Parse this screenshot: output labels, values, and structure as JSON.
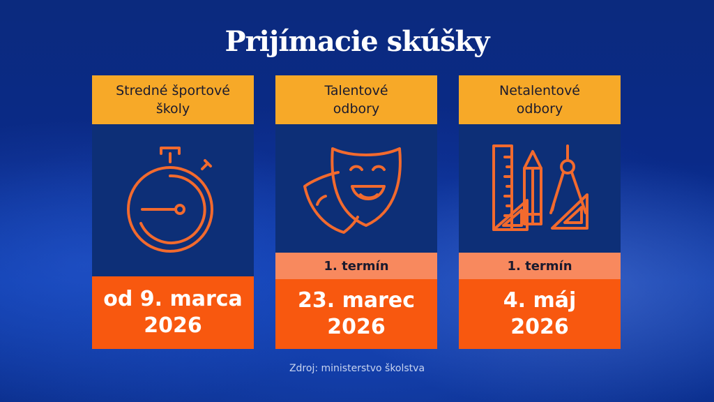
{
  "title": "Prijímacie skúšky",
  "cards": [
    {
      "header_line1": "Stredné športové",
      "header_line2": "školy",
      "icon": "stopwatch-icon",
      "date_line1": "od 9. marca",
      "date_line2": "2026"
    },
    {
      "header_line1": "Talentové",
      "header_line2": "odbory",
      "icon": "theater-masks-icon",
      "term": "1. termín",
      "date_line1": "23. marec",
      "date_line2": "2026"
    },
    {
      "header_line1": "Netalentové",
      "header_line2": "odbory",
      "icon": "drawing-tools-icon",
      "term": "1. termín",
      "date_line1": "4. máj",
      "date_line2": "2026"
    }
  ],
  "source": "Zdroj: ministerstvo školstva",
  "colors": {
    "header_bg": "#f7a928",
    "term_bg": "#f8895e",
    "date_bg": "#f8580f",
    "icon_stroke": "#f26a2e",
    "panel_bg": "#0d2f77"
  }
}
